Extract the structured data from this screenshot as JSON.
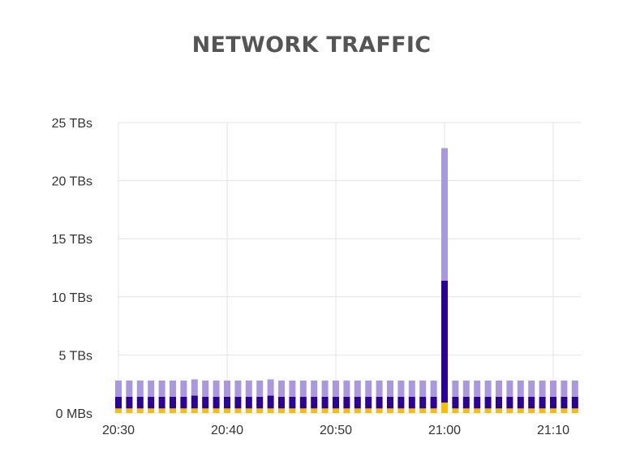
{
  "chart_data": {
    "type": "bar",
    "stacked": true,
    "title": "NETWORK TRAFFIC",
    "xlabel": "",
    "ylabel": "",
    "y_unit": "TBs",
    "ylim": [
      0,
      25
    ],
    "y_ticks": [
      0,
      5,
      10,
      15,
      20,
      25
    ],
    "y_tick_labels": [
      "0 MBs",
      "5 TBs",
      "10 TBs",
      "15 TBs",
      "20 TBs",
      "25 TBs"
    ],
    "x_ticks": [
      "20:30",
      "20:40",
      "20:50",
      "21:00",
      "21:10"
    ],
    "grid": true,
    "legend": "none",
    "categories": [
      "20:30",
      "20:31",
      "20:32",
      "20:33",
      "20:34",
      "20:35",
      "20:36",
      "20:37",
      "20:38",
      "20:39",
      "20:40",
      "20:41",
      "20:42",
      "20:43",
      "20:44",
      "20:45",
      "20:46",
      "20:47",
      "20:48",
      "20:49",
      "20:50",
      "20:51",
      "20:52",
      "20:53",
      "20:54",
      "20:55",
      "20:56",
      "20:57",
      "20:58",
      "20:59",
      "21:00",
      "21:01",
      "21:02",
      "21:03",
      "21:04",
      "21:05",
      "21:06",
      "21:07",
      "21:08",
      "21:09",
      "21:10",
      "21:11",
      "21:12"
    ],
    "series": [
      {
        "color": "#f5c000",
        "values": [
          0.4,
          0.4,
          0.4,
          0.4,
          0.4,
          0.4,
          0.4,
          0.4,
          0.4,
          0.4,
          0.4,
          0.4,
          0.4,
          0.4,
          0.4,
          0.4,
          0.4,
          0.4,
          0.4,
          0.4,
          0.4,
          0.4,
          0.4,
          0.4,
          0.4,
          0.4,
          0.4,
          0.4,
          0.4,
          0.4,
          0.9,
          0.4,
          0.4,
          0.4,
          0.4,
          0.4,
          0.4,
          0.4,
          0.4,
          0.4,
          0.4,
          0.4,
          0.4
        ]
      },
      {
        "color": "#2a0096",
        "values": [
          1.0,
          1.0,
          1.0,
          1.0,
          1.0,
          1.0,
          1.0,
          1.1,
          1.0,
          1.0,
          1.0,
          1.0,
          1.0,
          1.0,
          1.1,
          1.0,
          1.0,
          1.0,
          1.0,
          1.0,
          1.0,
          1.0,
          1.0,
          1.0,
          1.0,
          1.0,
          1.0,
          1.0,
          1.0,
          1.0,
          10.5,
          1.0,
          1.0,
          1.0,
          1.0,
          1.0,
          1.0,
          1.0,
          1.0,
          1.0,
          1.0,
          1.0,
          1.0
        ]
      },
      {
        "color": "#a998de",
        "values": [
          1.4,
          1.4,
          1.4,
          1.4,
          1.4,
          1.4,
          1.4,
          1.4,
          1.4,
          1.4,
          1.4,
          1.4,
          1.4,
          1.4,
          1.4,
          1.4,
          1.4,
          1.4,
          1.4,
          1.4,
          1.4,
          1.4,
          1.4,
          1.4,
          1.4,
          1.4,
          1.4,
          1.4,
          1.4,
          1.4,
          11.4,
          1.4,
          1.4,
          1.4,
          1.4,
          1.4,
          1.4,
          1.4,
          1.4,
          1.4,
          1.4,
          1.4,
          1.4
        ]
      }
    ]
  }
}
